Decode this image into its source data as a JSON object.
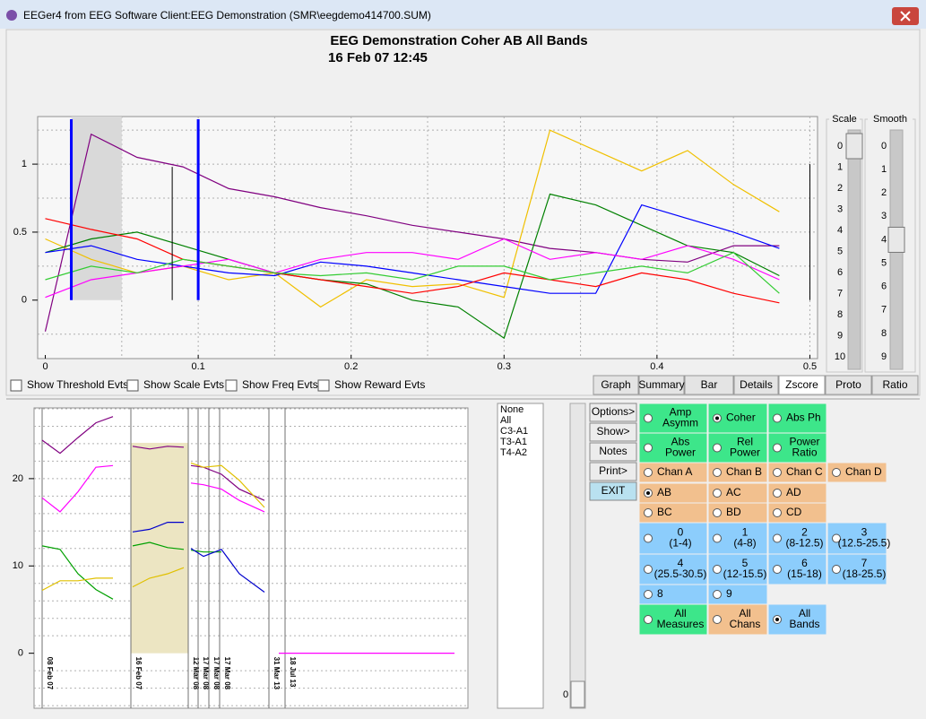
{
  "window": {
    "title": "EEGer4 from EEG Software  Client:EEG Demonstration  (SMR\\eegdemo414700.SUM)"
  },
  "chart_data": [
    {
      "type": "line",
      "title": "EEG Demonstration Coher AB All Bands",
      "subtitle": "16 Feb 07   12:45",
      "x": [
        0,
        0.03,
        0.06,
        0.09,
        0.12,
        0.15,
        0.18,
        0.21,
        0.24,
        0.27,
        0.3,
        0.33,
        0.36,
        0.39,
        0.42,
        0.45,
        0.48
      ],
      "series": [
        {
          "color": "#800080",
          "values": [
            -0.23,
            1.22,
            1.05,
            0.98,
            0.82,
            0.76,
            0.68,
            0.62,
            0.55,
            0.5,
            0.45,
            0.38,
            0.35,
            0.3,
            0.28,
            0.4,
            0.4
          ]
        },
        {
          "color": "#f0c000",
          "values": [
            0.45,
            0.3,
            0.2,
            0.25,
            0.15,
            0.2,
            -0.05,
            0.15,
            0.1,
            0.12,
            0.02,
            1.25,
            1.1,
            0.95,
            1.1,
            0.85,
            0.65
          ]
        },
        {
          "color": "#008000",
          "values": [
            0.35,
            0.45,
            0.5,
            0.4,
            0.3,
            0.2,
            0.15,
            0.12,
            0.0,
            -0.05,
            -0.28,
            0.78,
            0.7,
            0.55,
            0.4,
            0.35,
            0.18
          ]
        },
        {
          "color": "#0000ff",
          "values": [
            0.35,
            0.4,
            0.3,
            0.25,
            0.2,
            0.18,
            0.28,
            0.25,
            0.2,
            0.15,
            0.1,
            0.05,
            0.05,
            0.7,
            0.6,
            0.5,
            0.38
          ]
        },
        {
          "color": "#ff0000",
          "values": [
            0.6,
            0.52,
            0.45,
            0.3,
            0.25,
            0.2,
            0.15,
            0.1,
            0.05,
            0.1,
            0.2,
            0.15,
            0.1,
            0.2,
            0.15,
            0.05,
            -0.02
          ]
        },
        {
          "color": "#ff00ff",
          "values": [
            0.02,
            0.15,
            0.2,
            0.25,
            0.3,
            0.2,
            0.3,
            0.35,
            0.35,
            0.3,
            0.45,
            0.3,
            0.35,
            0.3,
            0.4,
            0.3,
            0.15
          ]
        },
        {
          "color": "#33cc33",
          "values": [
            0.15,
            0.25,
            0.2,
            0.3,
            0.25,
            0.2,
            0.18,
            0.2,
            0.15,
            0.25,
            0.25,
            0.15,
            0.2,
            0.25,
            0.2,
            0.35,
            0.05
          ]
        }
      ],
      "xlim": [
        -0.005,
        0.505
      ],
      "ylim": [
        -0.43,
        1.35
      ],
      "xticks": [
        0,
        0.1,
        0.2,
        0.3,
        0.4,
        0.5
      ],
      "yticks": [
        0,
        0.5,
        1
      ],
      "xgrid": [
        0.05,
        0.1,
        0.15,
        0.2,
        0.25,
        0.3,
        0.35,
        0.4,
        0.45,
        0.5
      ],
      "ygrid": [
        -0.25,
        0.25,
        0.5,
        0.75,
        1,
        1.25
      ],
      "shade": {
        "from": 0.017,
        "to": 0.05,
        "y": [
          0,
          1.35
        ],
        "color": "#d9d9d9"
      },
      "markers": [
        {
          "x": 0.017,
          "y": [
            0,
            1.33
          ],
          "color": "#0000ff",
          "width": 3
        },
        {
          "x": 0.1,
          "y": [
            0,
            1.33
          ],
          "color": "#0000ff",
          "width": 3
        },
        {
          "x": 0.083,
          "y": [
            0,
            0.98
          ],
          "color": "#000000",
          "width": 1
        },
        {
          "x": 0.5,
          "y": [
            0,
            1
          ],
          "color": "#000000",
          "width": 1
        }
      ]
    },
    {
      "type": "line",
      "x": [
        0,
        1,
        2,
        3,
        3.95,
        4.5,
        5.05,
        6,
        7,
        7.9,
        8.05,
        8.3,
        9,
        10,
        11,
        12.4,
        12.8,
        13.2,
        23
      ],
      "series": [
        {
          "color": "#800080",
          "values": [
            24.4,
            22.9,
            24.7,
            26.4,
            27.1,
            null,
            23.7,
            23.4,
            23.7,
            23.6,
            null,
            21.5,
            21.3,
            20.5,
            18.8,
            17.5,
            null,
            null,
            null
          ]
        },
        {
          "color": "#ff00ff",
          "values": [
            17.8,
            16.2,
            18.5,
            21.3,
            21.5,
            null,
            null,
            null,
            null,
            null,
            null,
            19.5,
            19.3,
            18.8,
            17.5,
            16.2,
            null,
            0,
            0
          ]
        },
        {
          "color": "#00a000",
          "values": [
            12.3,
            11.9,
            9.1,
            7.3,
            6.2,
            null,
            12.3,
            12.7,
            12.1,
            11.9,
            null,
            11.8,
            11.6,
            11.6,
            null,
            null,
            null,
            null,
            null
          ]
        },
        {
          "color": "#e0c000",
          "values": [
            7.2,
            8.3,
            8.3,
            8.6,
            8.6,
            null,
            7.6,
            8.6,
            9.1,
            9.8,
            null,
            21.8,
            21.3,
            21.5,
            19.8,
            16.7,
            null,
            null,
            null
          ]
        },
        {
          "color": "#0000cc",
          "values": [
            null,
            null,
            null,
            null,
            null,
            null,
            13.9,
            14.2,
            15,
            15,
            null,
            12,
            11.1,
            11.9,
            9.1,
            7,
            null,
            null,
            null
          ]
        }
      ],
      "xlim": [
        -0.45,
        23.75
      ],
      "ylim": [
        -6.3,
        28.1
      ],
      "yticks": [
        0,
        10,
        20
      ],
      "ygrid": [
        -6,
        -4,
        -2,
        2,
        4,
        6,
        8,
        10,
        12,
        14,
        16,
        18,
        20,
        22,
        24,
        26,
        28
      ],
      "highlight": {
        "from": 4.95,
        "to": 8.15,
        "y": [
          0,
          24.1
        ],
        "color": "#ece5c2"
      },
      "sessions": [
        {
          "label": "08 Feb 07",
          "x": 0
        },
        {
          "label": "16 Feb 07",
          "x": 4.95
        },
        {
          "label": "12 Mar 08",
          "x": 8.15
        },
        {
          "label": "17 Mar 08",
          "x": 8.7
        },
        {
          "label": "17 Mar 08",
          "x": 9.3
        },
        {
          "label": "17 Mar 08",
          "x": 9.9
        },
        {
          "label": "31 Mar 13",
          "x": 12.65
        },
        {
          "label": "18 Jul 13",
          "x": 13.55
        }
      ]
    }
  ],
  "checkboxes": [
    "Show Threshold Evts",
    "Show Scale Evts",
    "Show Freq Evts",
    "Show Reward Evts"
  ],
  "tabs": {
    "items": [
      "Graph",
      "Summary",
      "Bar",
      "Details",
      "Zscore",
      "Proto",
      "Ratio"
    ],
    "active": 4
  },
  "sliders": [
    {
      "label": "Scale",
      "ticks": [
        0,
        1,
        2,
        3,
        4,
        5,
        6,
        7,
        8,
        9,
        10
      ],
      "value": 0
    },
    {
      "label": "Smooth",
      "ticks": [
        0,
        1,
        2,
        3,
        4,
        5,
        6,
        7,
        8,
        9
      ],
      "value": 4
    }
  ],
  "channel_list": [
    "None",
    "All",
    "C3-A1",
    "T3-A1",
    "T4-A2"
  ],
  "scrollbar": {
    "value": 0
  },
  "buttons": [
    "Options>",
    "Show>",
    "Notes",
    "Print>",
    "EXIT"
  ],
  "options": [
    [
      {
        "lines": [
          "Amp",
          "Asymm"
        ],
        "color": "#3de68a",
        "selected": false
      },
      {
        "lines": [
          "Coher"
        ],
        "color": "#3de68a",
        "selected": true
      },
      {
        "lines": [
          "Abs Ph"
        ],
        "color": "#3de68a",
        "selected": false
      }
    ],
    [
      {
        "lines": [
          "Abs",
          "Power"
        ],
        "color": "#3de68a",
        "selected": false
      },
      {
        "lines": [
          "Rel",
          "Power"
        ],
        "color": "#3de68a",
        "selected": false
      },
      {
        "lines": [
          "Power",
          "Ratio"
        ],
        "color": "#3de68a",
        "selected": false
      }
    ],
    [
      {
        "lines": [
          "Chan A"
        ],
        "color": "#f2c08e",
        "selected": false
      },
      {
        "lines": [
          "Chan B"
        ],
        "color": "#f2c08e",
        "selected": false
      },
      {
        "lines": [
          "Chan C"
        ],
        "color": "#f2c08e",
        "selected": false
      },
      {
        "lines": [
          "Chan D"
        ],
        "color": "#f2c08e",
        "selected": false
      }
    ],
    [
      {
        "lines": [
          "AB"
        ],
        "color": "#f2c08e",
        "selected": true
      },
      {
        "lines": [
          "AC"
        ],
        "color": "#f2c08e",
        "selected": false
      },
      {
        "lines": [
          "AD"
        ],
        "color": "#f2c08e",
        "selected": false
      }
    ],
    [
      {
        "lines": [
          "BC"
        ],
        "color": "#f2c08e",
        "selected": false
      },
      {
        "lines": [
          "BD"
        ],
        "color": "#f2c08e",
        "selected": false
      },
      {
        "lines": [
          "CD"
        ],
        "color": "#f2c08e",
        "selected": false
      }
    ],
    [
      {
        "lines": [
          "0",
          "(1-4)"
        ],
        "color": "#8ccdfc",
        "selected": false
      },
      {
        "lines": [
          "1",
          "(4-8)"
        ],
        "color": "#8ccdfc",
        "selected": false
      },
      {
        "lines": [
          "2",
          "(8-12.5)"
        ],
        "color": "#8ccdfc",
        "selected": false
      },
      {
        "lines": [
          "3",
          "(12.5-25.5)"
        ],
        "color": "#8ccdfc",
        "selected": false
      }
    ],
    [
      {
        "lines": [
          "4",
          "(25.5-30.5)"
        ],
        "color": "#8ccdfc",
        "selected": false
      },
      {
        "lines": [
          "5",
          "(12-15.5)"
        ],
        "color": "#8ccdfc",
        "selected": false
      },
      {
        "lines": [
          "6",
          "(15-18)"
        ],
        "color": "#8ccdfc",
        "selected": false
      },
      {
        "lines": [
          "7",
          "(18-25.5)"
        ],
        "color": "#8ccdfc",
        "selected": false
      }
    ],
    [
      {
        "lines": [
          "8"
        ],
        "color": "#8ccdfc",
        "selected": false
      },
      {
        "lines": [
          "9"
        ],
        "color": "#8ccdfc",
        "selected": false
      }
    ],
    [
      {
        "lines": [
          "All",
          "Measures"
        ],
        "color": "#3de68a",
        "selected": false
      },
      {
        "lines": [
          "All",
          "Chans"
        ],
        "color": "#f2c08e",
        "selected": false
      },
      {
        "lines": [
          "All",
          "Bands"
        ],
        "color": "#8ccdfc",
        "selected": true
      }
    ]
  ]
}
